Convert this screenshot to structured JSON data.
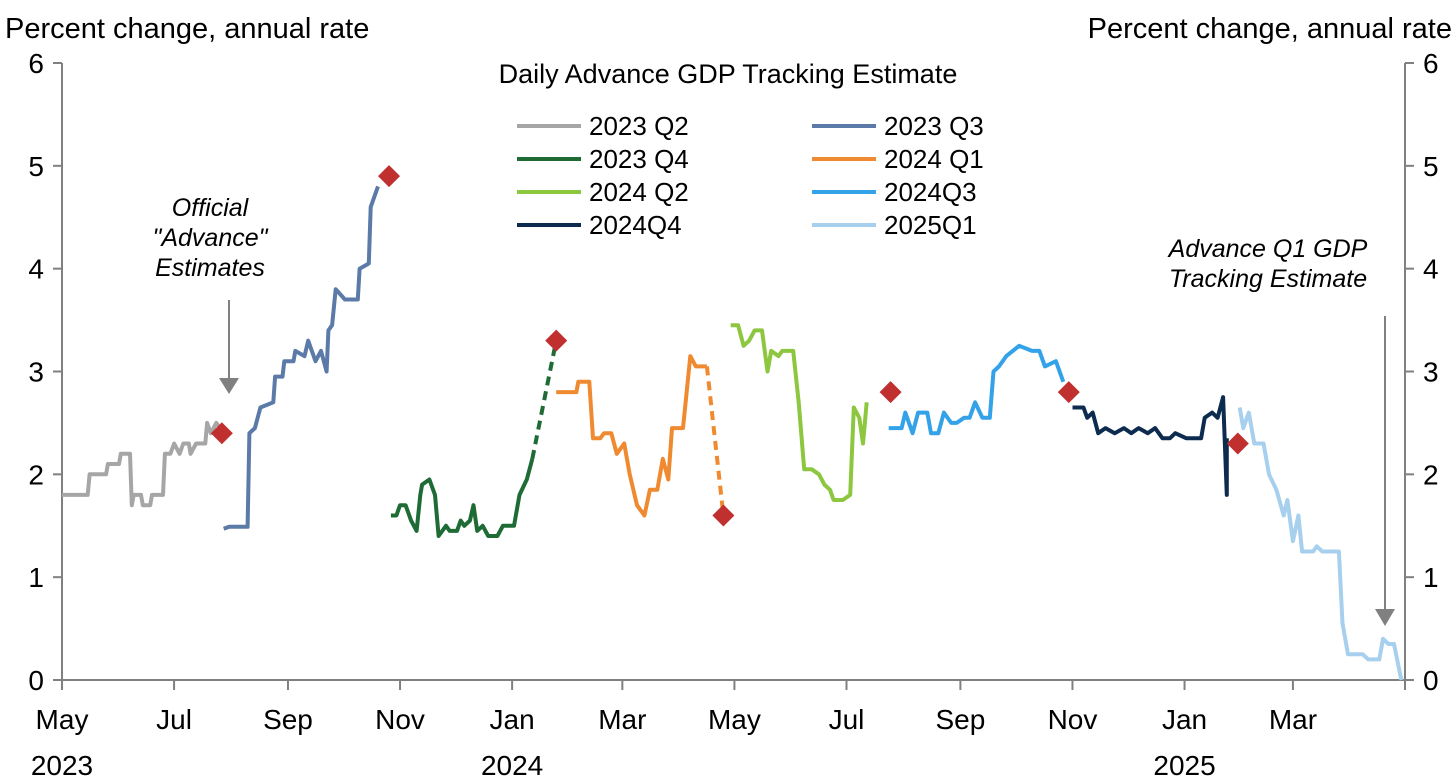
{
  "chart_data": {
    "type": "line",
    "title": "Daily Advance GDP Tracking Estimate",
    "ylabel_left": "Percent change, annual rate",
    "ylabel_right": "Percent change, annual rate",
    "ylim": [
      0,
      6
    ],
    "yticks": [
      "0",
      "1",
      "2",
      "3",
      "4",
      "5",
      "6"
    ],
    "xlim": [
      "2023-05-01",
      "2025-05-01"
    ],
    "xticks": [
      {
        "date": "2023-05-01",
        "label": "May",
        "year": "2023"
      },
      {
        "date": "2023-07-01",
        "label": "Jul",
        "year": ""
      },
      {
        "date": "2023-09-01",
        "label": "Sep",
        "year": ""
      },
      {
        "date": "2023-11-01",
        "label": "Nov",
        "year": ""
      },
      {
        "date": "2024-01-01",
        "label": "Jan",
        "year": "2024"
      },
      {
        "date": "2024-03-01",
        "label": "Mar",
        "year": ""
      },
      {
        "date": "2024-05-01",
        "label": "May",
        "year": ""
      },
      {
        "date": "2024-07-01",
        "label": "Jul",
        "year": ""
      },
      {
        "date": "2024-09-01",
        "label": "Sep",
        "year": ""
      },
      {
        "date": "2024-11-01",
        "label": "Nov",
        "year": ""
      },
      {
        "date": "2025-01-01",
        "label": "Jan",
        "year": "2025"
      },
      {
        "date": "2025-03-01",
        "label": "Mar",
        "year": ""
      }
    ],
    "legend_placement": "top-center",
    "grid": false,
    "series": [
      {
        "name": "2023 Q2",
        "color": "#a6a6a6",
        "points": [
          [
            "2023-05-01",
            1.8
          ],
          [
            "2023-05-15",
            1.8
          ],
          [
            "2023-05-16",
            2.0
          ],
          [
            "2023-05-25",
            2.0
          ],
          [
            "2023-05-26",
            2.1
          ],
          [
            "2023-06-01",
            2.1
          ],
          [
            "2023-06-02",
            2.2
          ],
          [
            "2023-06-07",
            2.2
          ],
          [
            "2023-06-08",
            1.7
          ],
          [
            "2023-06-09",
            1.8
          ],
          [
            "2023-06-13",
            1.8
          ],
          [
            "2023-06-14",
            1.7
          ],
          [
            "2023-06-18",
            1.7
          ],
          [
            "2023-06-19",
            1.8
          ],
          [
            "2023-06-25",
            1.8
          ],
          [
            "2023-06-26",
            2.2
          ],
          [
            "2023-06-29",
            2.2
          ],
          [
            "2023-07-01",
            2.3
          ],
          [
            "2023-07-04",
            2.2
          ],
          [
            "2023-07-06",
            2.3
          ],
          [
            "2023-07-09",
            2.3
          ],
          [
            "2023-07-10",
            2.2
          ],
          [
            "2023-07-13",
            2.3
          ],
          [
            "2023-07-18",
            2.3
          ],
          [
            "2023-07-19",
            2.5
          ],
          [
            "2023-07-21",
            2.4
          ],
          [
            "2023-07-24",
            2.5
          ],
          [
            "2023-07-26",
            2.45
          ]
        ]
      },
      {
        "name": "2023 Q3",
        "color": "#5b7aa7",
        "points": [
          [
            "2023-07-28",
            1.47
          ],
          [
            "2023-07-31",
            1.49
          ],
          [
            "2023-08-10",
            1.49
          ],
          [
            "2023-08-11",
            2.4
          ],
          [
            "2023-08-14",
            2.45
          ],
          [
            "2023-08-17",
            2.65
          ],
          [
            "2023-08-24",
            2.7
          ],
          [
            "2023-08-25",
            2.95
          ],
          [
            "2023-08-29",
            2.95
          ],
          [
            "2023-08-30",
            3.1
          ],
          [
            "2023-09-04",
            3.1
          ],
          [
            "2023-09-05",
            3.2
          ],
          [
            "2023-09-10",
            3.15
          ],
          [
            "2023-09-12",
            3.3
          ],
          [
            "2023-09-16",
            3.1
          ],
          [
            "2023-09-19",
            3.2
          ],
          [
            "2023-09-22",
            3.0
          ],
          [
            "2023-09-23",
            3.4
          ],
          [
            "2023-09-25",
            3.45
          ],
          [
            "2023-09-27",
            3.8
          ],
          [
            "2023-10-02",
            3.7
          ],
          [
            "2023-10-09",
            3.7
          ],
          [
            "2023-10-10",
            4.0
          ],
          [
            "2023-10-15",
            4.05
          ],
          [
            "2023-10-16",
            4.6
          ],
          [
            "2023-10-19",
            4.75
          ],
          [
            "2023-10-20",
            4.8
          ]
        ]
      },
      {
        "name": "2023 Q4",
        "color": "#1e6b35",
        "points": [
          [
            "2023-10-27",
            1.6
          ],
          [
            "2023-10-30",
            1.6
          ],
          [
            "2023-11-01",
            1.7
          ],
          [
            "2023-11-04",
            1.7
          ],
          [
            "2023-11-07",
            1.55
          ],
          [
            "2023-11-10",
            1.45
          ],
          [
            "2023-11-12",
            1.8
          ],
          [
            "2023-11-13",
            1.9
          ],
          [
            "2023-11-17",
            1.95
          ],
          [
            "2023-11-20",
            1.8
          ],
          [
            "2023-11-22",
            1.4
          ],
          [
            "2023-11-26",
            1.5
          ],
          [
            "2023-11-28",
            1.45
          ],
          [
            "2023-12-02",
            1.45
          ],
          [
            "2023-12-04",
            1.55
          ],
          [
            "2023-12-06",
            1.5
          ],
          [
            "2023-12-09",
            1.55
          ],
          [
            "2023-12-11",
            1.7
          ],
          [
            "2023-12-13",
            1.45
          ],
          [
            "2023-12-16",
            1.5
          ],
          [
            "2023-12-19",
            1.4
          ],
          [
            "2023-12-24",
            1.4
          ],
          [
            "2023-12-27",
            1.5
          ],
          [
            "2024-01-02",
            1.5
          ],
          [
            "2024-01-05",
            1.8
          ],
          [
            "2024-01-09",
            1.95
          ],
          [
            "2024-01-12",
            2.15
          ]
        ]
      },
      {
        "name": "2024 Q1",
        "color": "#f08a30",
        "points": [
          [
            "2024-01-25",
            2.8
          ],
          [
            "2024-02-05",
            2.8
          ],
          [
            "2024-02-06",
            2.9
          ],
          [
            "2024-02-12",
            2.9
          ],
          [
            "2024-02-14",
            2.35
          ],
          [
            "2024-02-18",
            2.35
          ],
          [
            "2024-02-20",
            2.4
          ],
          [
            "2024-02-24",
            2.4
          ],
          [
            "2024-02-27",
            2.2
          ],
          [
            "2024-03-02",
            2.3
          ],
          [
            "2024-03-05",
            2.0
          ],
          [
            "2024-03-09",
            1.7
          ],
          [
            "2024-03-13",
            1.6
          ],
          [
            "2024-03-16",
            1.85
          ],
          [
            "2024-03-20",
            1.85
          ],
          [
            "2024-03-23",
            2.15
          ],
          [
            "2024-03-26",
            1.95
          ],
          [
            "2024-03-28",
            2.45
          ],
          [
            "2024-04-03",
            2.45
          ],
          [
            "2024-04-07",
            3.15
          ],
          [
            "2024-04-10",
            3.05
          ],
          [
            "2024-04-16",
            3.05
          ]
        ]
      },
      {
        "name": "2024 Q2",
        "color": "#8dc63f",
        "points": [
          [
            "2024-04-29",
            3.45
          ],
          [
            "2024-05-03",
            3.45
          ],
          [
            "2024-05-06",
            3.25
          ],
          [
            "2024-05-09",
            3.3
          ],
          [
            "2024-05-12",
            3.4
          ],
          [
            "2024-05-16",
            3.4
          ],
          [
            "2024-05-19",
            3.0
          ],
          [
            "2024-05-21",
            3.2
          ],
          [
            "2024-05-25",
            3.15
          ],
          [
            "2024-05-27",
            3.2
          ],
          [
            "2024-06-02",
            3.2
          ],
          [
            "2024-06-05",
            2.7
          ],
          [
            "2024-06-08",
            2.05
          ],
          [
            "2024-06-12",
            2.05
          ],
          [
            "2024-06-16",
            2.0
          ],
          [
            "2024-06-19",
            1.9
          ],
          [
            "2024-06-22",
            1.85
          ],
          [
            "2024-06-24",
            1.75
          ],
          [
            "2024-06-29",
            1.75
          ],
          [
            "2024-07-03",
            1.8
          ],
          [
            "2024-07-05",
            2.65
          ],
          [
            "2024-07-08",
            2.55
          ],
          [
            "2024-07-10",
            2.3
          ],
          [
            "2024-07-12",
            2.7
          ]
        ]
      },
      {
        "name": "2024Q3",
        "color": "#33a2e8",
        "points": [
          [
            "2024-07-24",
            2.45
          ],
          [
            "2024-07-31",
            2.45
          ],
          [
            "2024-08-02",
            2.6
          ],
          [
            "2024-08-06",
            2.4
          ],
          [
            "2024-08-09",
            2.6
          ],
          [
            "2024-08-14",
            2.6
          ],
          [
            "2024-08-16",
            2.4
          ],
          [
            "2024-08-20",
            2.4
          ],
          [
            "2024-08-23",
            2.6
          ],
          [
            "2024-08-27",
            2.5
          ],
          [
            "2024-08-30",
            2.5
          ],
          [
            "2024-09-03",
            2.55
          ],
          [
            "2024-09-06",
            2.55
          ],
          [
            "2024-09-09",
            2.7
          ],
          [
            "2024-09-13",
            2.55
          ],
          [
            "2024-09-17",
            2.55
          ],
          [
            "2024-09-19",
            3.0
          ],
          [
            "2024-09-22",
            3.05
          ],
          [
            "2024-09-26",
            3.15
          ],
          [
            "2024-10-03",
            3.25
          ],
          [
            "2024-10-10",
            3.2
          ],
          [
            "2024-10-14",
            3.2
          ],
          [
            "2024-10-17",
            3.05
          ],
          [
            "2024-10-23",
            3.1
          ],
          [
            "2024-10-27",
            2.9
          ]
        ]
      },
      {
        "name": "2024Q4",
        "color": "#0d2b4f",
        "points": [
          [
            "2024-11-01",
            2.65
          ],
          [
            "2024-11-07",
            2.65
          ],
          [
            "2024-11-09",
            2.55
          ],
          [
            "2024-11-12",
            2.6
          ],
          [
            "2024-11-15",
            2.4
          ],
          [
            "2024-11-19",
            2.45
          ],
          [
            "2024-11-24",
            2.4
          ],
          [
            "2024-11-29",
            2.45
          ],
          [
            "2024-12-03",
            2.4
          ],
          [
            "2024-12-07",
            2.45
          ],
          [
            "2024-12-12",
            2.4
          ],
          [
            "2024-12-16",
            2.45
          ],
          [
            "2024-12-20",
            2.35
          ],
          [
            "2024-12-24",
            2.35
          ],
          [
            "2024-12-27",
            2.4
          ],
          [
            "2025-01-02",
            2.35
          ],
          [
            "2025-01-10",
            2.35
          ],
          [
            "2025-01-12",
            2.55
          ],
          [
            "2025-01-16",
            2.6
          ],
          [
            "2025-01-19",
            2.55
          ],
          [
            "2025-01-22",
            2.75
          ],
          [
            "2025-01-24",
            1.8
          ],
          [
            "2025-01-24",
            2.35
          ]
        ]
      },
      {
        "name": "2025Q1",
        "color": "#a7cfee",
        "points": [
          [
            "2025-01-31",
            2.65
          ],
          [
            "2025-02-02",
            2.45
          ],
          [
            "2025-02-05",
            2.6
          ],
          [
            "2025-02-08",
            2.3
          ],
          [
            "2025-02-13",
            2.3
          ],
          [
            "2025-02-16",
            2.0
          ],
          [
            "2025-02-20",
            1.85
          ],
          [
            "2025-02-24",
            1.6
          ],
          [
            "2025-02-26",
            1.75
          ],
          [
            "2025-03-01",
            1.35
          ],
          [
            "2025-03-04",
            1.6
          ],
          [
            "2025-03-06",
            1.25
          ],
          [
            "2025-03-12",
            1.25
          ],
          [
            "2025-03-14",
            1.3
          ],
          [
            "2025-03-17",
            1.25
          ],
          [
            "2025-03-26",
            1.25
          ],
          [
            "2025-03-28",
            0.55
          ],
          [
            "2025-03-31",
            0.25
          ],
          [
            "2025-04-08",
            0.25
          ],
          [
            "2025-04-11",
            0.2
          ],
          [
            "2025-04-17",
            0.2
          ],
          [
            "2025-04-19",
            0.4
          ],
          [
            "2025-04-22",
            0.35
          ],
          [
            "2025-04-25",
            0.35
          ],
          [
            "2025-04-29",
            0.0
          ]
        ]
      }
    ],
    "connectors": [
      {
        "series": "2023 Q4",
        "color": "#1e6b35",
        "points": [
          [
            "2024-01-12",
            2.15
          ],
          [
            "2024-01-25",
            3.3
          ]
        ]
      },
      {
        "series": "2024 Q1",
        "color": "#f08a30",
        "points": [
          [
            "2024-04-16",
            3.05
          ],
          [
            "2024-04-25",
            1.6
          ]
        ]
      }
    ],
    "advance_estimates": [
      {
        "date": "2023-07-27",
        "value": 2.4
      },
      {
        "date": "2023-10-26",
        "value": 4.9
      },
      {
        "date": "2024-01-25",
        "value": 3.3
      },
      {
        "date": "2024-04-25",
        "value": 1.6
      },
      {
        "date": "2024-07-25",
        "value": 2.8
      },
      {
        "date": "2024-10-30",
        "value": 2.8
      },
      {
        "date": "2025-01-30",
        "value": 2.3
      }
    ],
    "annotations": [
      {
        "id": "official",
        "lines": [
          "Official",
          "\"Advance\"",
          "Estimates"
        ]
      },
      {
        "id": "advance_q1",
        "lines": [
          "Advance Q1 GDP",
          "Tracking Estimate"
        ]
      }
    ]
  }
}
